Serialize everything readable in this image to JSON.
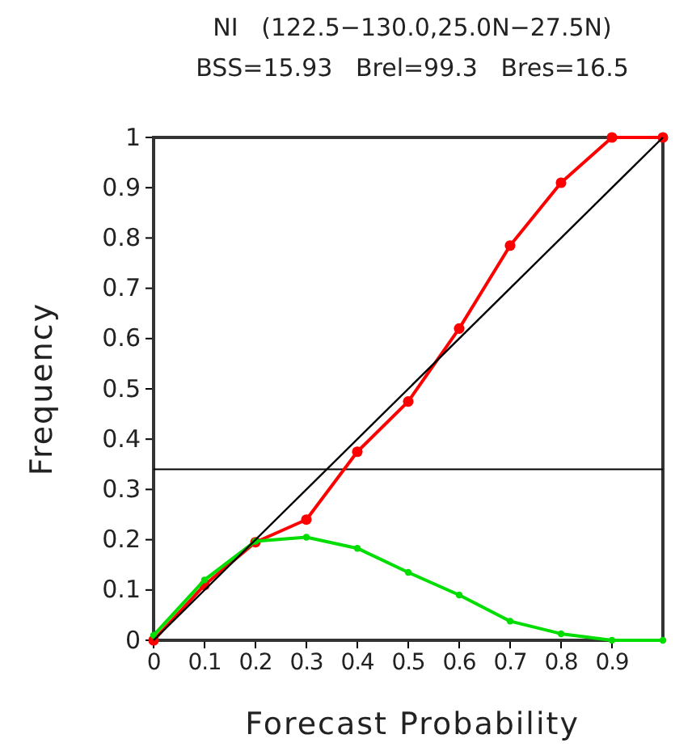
{
  "chart_data": {
    "type": "line",
    "title": "NI   (122.5−130.0,25.0N−27.5N)",
    "subtitle": "BSS=15.93   Brel=99.3   Bres=16.5",
    "xlabel": "Forecast Probability",
    "ylabel": "Frequency",
    "x": [
      0,
      0.1,
      0.2,
      0.3,
      0.4,
      0.5,
      0.6,
      0.7,
      0.8,
      0.9,
      1
    ],
    "series": [
      {
        "color": "#ff0000",
        "values": [
          0,
          0.11,
          0.195,
          0.24,
          0.375,
          0.475,
          0.62,
          0.785,
          0.91,
          1,
          1
        ]
      },
      {
        "color": "#00dd00",
        "values": [
          0.01,
          0.12,
          0.197,
          0.205,
          0.183,
          0.135,
          0.09,
          0.038,
          0.013,
          0,
          0
        ]
      },
      {
        "type": "line",
        "color": "#000000",
        "x": [
          0,
          1
        ],
        "values": [
          0,
          1
        ],
        "marker": "none"
      }
    ],
    "ref_lines": [
      {
        "axis": "y",
        "value": 0.34,
        "color": "#000000"
      }
    ],
    "xlim": [
      0,
      1
    ],
    "xticks": [
      0,
      0.1,
      0.2,
      0.3,
      0.4,
      0.5,
      0.6,
      0.7,
      0.8,
      0.9
    ],
    "ylim": [
      0,
      1
    ],
    "yticks": [
      0,
      0.1,
      0.2,
      0.3,
      0.4,
      0.5,
      0.6,
      0.7,
      0.8,
      0.9,
      1
    ],
    "marker": "circle",
    "line_style": "solid"
  }
}
